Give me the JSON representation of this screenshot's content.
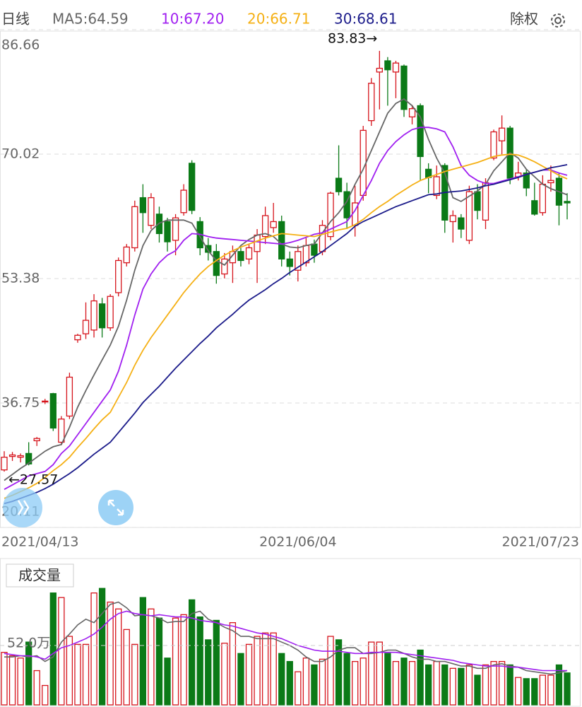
{
  "chart_data": [
    {
      "type": "candlestick",
      "period": "日线",
      "adjust": "除权",
      "categories": [
        "2021/04/13",
        null,
        null,
        null,
        null,
        null,
        null,
        null,
        null,
        null,
        null,
        null,
        null,
        null,
        null,
        null,
        null,
        null,
        null,
        null,
        null,
        null,
        null,
        null,
        null,
        null,
        null,
        null,
        null,
        null,
        null,
        null,
        null,
        null,
        null,
        null,
        "2021/06/04",
        null,
        null,
        null,
        null,
        null,
        null,
        null,
        null,
        null,
        null,
        null,
        null,
        null,
        null,
        null,
        null,
        null,
        null,
        null,
        null,
        null,
        null,
        null,
        null,
        null,
        null,
        null,
        null,
        null,
        null,
        null,
        null,
        "2021/07/23"
      ],
      "open": [
        27.8,
        29.6,
        29.5,
        30.0,
        31.7,
        36.9,
        38.0,
        31.5,
        35.0,
        45.2,
        46.0,
        46.5,
        50.0,
        46.8,
        51.5,
        55.5,
        57.5,
        64.2,
        60.5,
        62.0,
        61.0,
        58.5,
        62.2,
        68.8,
        61.0,
        57.8,
        57.0,
        54.0,
        55.5,
        57.0,
        56.0,
        57.0,
        59.0,
        60.2,
        61.0,
        56.0,
        54.5,
        55.5,
        58.0,
        57.0,
        59.0,
        66.8,
        65.0,
        60.5,
        64.5,
        74.5,
        81.0,
        82.5,
        81.0,
        81.8,
        75.0,
        76.5,
        68.0,
        64.5,
        68.5,
        61.0,
        61.5,
        58.5,
        65.0,
        61.2,
        69.5,
        71.8,
        73.5,
        67.0,
        67.5,
        63.8,
        62.2,
        66.2,
        66.8,
        63.7
      ],
      "high": [
        30.3,
        30.2,
        30.0,
        31.5,
        32.2,
        37.3,
        38.1,
        35.0,
        40.8,
        46.0,
        50.2,
        51.3,
        50.8,
        51.3,
        56.2,
        58.0,
        63.8,
        66.0,
        64.8,
        63.0,
        61.5,
        62.0,
        66.0,
        69.2,
        61.6,
        58.8,
        58.0,
        56.8,
        57.8,
        57.5,
        58.0,
        60.0,
        63.0,
        63.5,
        61.8,
        57.0,
        57.8,
        58.8,
        58.6,
        61.2,
        65.0,
        71.2,
        66.2,
        65.8,
        73.8,
        80.2,
        83.83,
        83.0,
        82.5,
        82.0,
        76.6,
        76.8,
        68.8,
        68.5,
        68.8,
        62.5,
        62.0,
        65.8,
        66.0,
        66.8,
        73.3,
        75.2,
        73.8,
        69.0,
        68.0,
        66.2,
        67.2,
        68.5,
        67.5,
        64.8
      ],
      "low": [
        27.57,
        29.0,
        28.8,
        28.4,
        31.0,
        36.6,
        33.0,
        31.1,
        34.6,
        44.8,
        45.3,
        45.5,
        45.5,
        46.4,
        51.0,
        55.0,
        57.0,
        59.5,
        60.0,
        58.2,
        57.0,
        56.5,
        61.8,
        62.0,
        56.5,
        55.8,
        52.7,
        53.4,
        52.8,
        55.0,
        55.3,
        52.8,
        58.0,
        59.5,
        55.0,
        53.8,
        53.0,
        55.0,
        55.5,
        56.5,
        58.5,
        64.5,
        60.0,
        59.0,
        63.8,
        73.8,
        76.0,
        76.5,
        77.5,
        75.0,
        74.0,
        66.5,
        64.8,
        64.0,
        59.5,
        58.2,
        58.8,
        58.0,
        61.3,
        60.0,
        69.2,
        70.0,
        66.0,
        66.5,
        64.4,
        61.8,
        61.8,
        65.0,
        60.5,
        61.3
      ],
      "close": [
        29.5,
        29.8,
        29.7,
        28.6,
        32.0,
        37.0,
        33.4,
        34.6,
        40.2,
        45.8,
        47.8,
        50.4,
        46.8,
        51.0,
        55.8,
        57.6,
        63.0,
        62.2,
        64.2,
        59.4,
        58.3,
        61.5,
        65.2,
        62.5,
        57.5,
        56.9,
        53.8,
        56.0,
        57.0,
        55.8,
        57.5,
        59.2,
        61.8,
        61.0,
        56.0,
        55.0,
        57.0,
        57.8,
        56.5,
        60.5,
        64.8,
        65.0,
        61.5,
        63.5,
        73.2,
        79.5,
        81.5,
        81.3,
        82.2,
        76.0,
        76.1,
        69.7,
        66.9,
        67.0,
        61.2,
        61.8,
        60.0,
        65.0,
        62.5,
        66.2,
        73.0,
        73.5,
        66.8,
        67.5,
        65.5,
        62.0,
        66.0,
        66.5,
        63.2,
        63.5
      ],
      "up_color": "#d6141c",
      "down_color": "#0b7a17",
      "series": [
        {
          "name": "MA5:64.59",
          "color": "#666666",
          "values": [
            26.4,
            27.2,
            28.0,
            28.7,
            29.5,
            30.3,
            30.9,
            31.2,
            33.5,
            36.2,
            38.4,
            40.5,
            42.5,
            44.5,
            47.0,
            50.5,
            54.5,
            57.8,
            59.8,
            60.8,
            61.2,
            61.2,
            61.2,
            60.8,
            59.0,
            57.1,
            55.8,
            55.2,
            56.5,
            57.8,
            58.6,
            59.2,
            59.4,
            59.0,
            58.0,
            57.6,
            57.5,
            57.8,
            58.0,
            59.5,
            61.0,
            62.2,
            63.7,
            66.0,
            68.0,
            70.5,
            73.0,
            75.5,
            76.8,
            77.4,
            76.5,
            75.0,
            72.0,
            69.5,
            67.5,
            64.2,
            63.7,
            64.4,
            65.1,
            66.0,
            67.8,
            69.0,
            70.2,
            69.5,
            68.0,
            67.0,
            66.0,
            65.4,
            65.0,
            64.59
          ]
        },
        {
          "name": "10:67.20",
          "color": "#a01ff0",
          "values": [
            25.2,
            25.8,
            26.4,
            27.0,
            27.3,
            27.6,
            28.5,
            30.0,
            31.0,
            32.5,
            34.0,
            35.5,
            37.0,
            38.5,
            41.0,
            44.5,
            48.5,
            52.0,
            54.0,
            55.5,
            56.5,
            57.1,
            58.5,
            59.4,
            59.3,
            59.0,
            58.8,
            58.7,
            58.6,
            58.5,
            58.4,
            58.3,
            58.2,
            58.1,
            58.0,
            58.2,
            58.5,
            58.9,
            59.3,
            59.5,
            60.0,
            60.5,
            61.0,
            62.5,
            64.5,
            66.5,
            68.8,
            70.5,
            71.7,
            72.6,
            73.3,
            73.6,
            73.6,
            73.4,
            73.0,
            71.0,
            68.5,
            67.2,
            66.5,
            66.1,
            66.1,
            66.4,
            66.7,
            67.0,
            67.3,
            67.6,
            67.9,
            67.9,
            67.5,
            67.2
          ]
        },
        {
          "name": "20:66.71",
          "color": "#f5b014",
          "values": [
            24.0,
            24.4,
            24.9,
            25.4,
            26.0,
            26.8,
            27.7,
            28.5,
            29.5,
            30.8,
            32.0,
            33.3,
            34.5,
            35.5,
            37.5,
            39.5,
            41.8,
            43.8,
            45.5,
            47.0,
            48.5,
            50.0,
            51.5,
            52.8,
            54.0,
            55.0,
            55.8,
            56.5,
            57.1,
            57.6,
            58.0,
            58.4,
            58.8,
            59.1,
            59.4,
            59.3,
            59.2,
            59.1,
            59.0,
            59.3,
            59.6,
            59.9,
            60.1,
            60.6,
            61.3,
            62.2,
            63.0,
            63.7,
            64.5,
            65.2,
            65.9,
            66.5,
            66.9,
            67.3,
            67.7,
            68.0,
            68.3,
            68.6,
            68.9,
            69.3,
            69.7,
            69.9,
            70.0,
            69.9,
            69.5,
            69.0,
            68.4,
            67.8,
            67.2,
            66.71
          ]
        },
        {
          "name": "30:68.61",
          "color": "#1b1b8a",
          "values": [
            23.3,
            23.6,
            24.0,
            24.4,
            24.8,
            25.3,
            25.9,
            26.6,
            27.3,
            28.1,
            29.0,
            29.9,
            30.7,
            31.5,
            32.8,
            34.1,
            35.4,
            36.8,
            37.9,
            39.0,
            40.2,
            41.4,
            42.5,
            43.6,
            44.7,
            45.7,
            46.8,
            47.7,
            48.6,
            49.6,
            50.5,
            51.2,
            51.9,
            52.7,
            53.4,
            54.2,
            54.9,
            55.6,
            56.3,
            57.0,
            57.8,
            58.6,
            59.4,
            60.4,
            61.0,
            61.5,
            62.0,
            62.5,
            63.0,
            63.4,
            63.8,
            64.2,
            64.6,
            64.7,
            64.9,
            65.0,
            65.1,
            65.3,
            65.5,
            65.8,
            66.0,
            66.3,
            66.6,
            66.9,
            67.3,
            67.6,
            67.9,
            68.2,
            68.4,
            68.61
          ]
        }
      ],
      "ylim": [
        20.11,
        86.66
      ],
      "yticks": [
        86.66,
        70.02,
        53.38,
        36.75,
        20.11
      ],
      "grid": true,
      "high_label": "83.83→",
      "low_label": "←27.57"
    },
    {
      "type": "volume",
      "title": "成交量",
      "values": [
        46,
        43,
        41,
        55,
        30,
        17,
        98,
        94,
        60,
        53,
        53,
        98,
        102,
        90,
        84,
        66,
        53,
        94,
        84,
        76,
        41,
        76,
        79,
        92,
        77,
        57,
        74,
        54,
        72,
        45,
        53,
        60,
        63,
        63,
        45,
        38,
        29,
        41,
        35,
        40,
        60,
        57,
        45,
        38,
        41,
        55,
        55,
        45,
        38,
        41,
        38,
        48,
        35,
        38,
        35,
        32,
        32,
        35,
        26,
        35,
        38,
        38,
        35,
        24,
        23,
        23,
        26,
        26,
        35,
        28
      ],
      "lines": [
        {
          "color": "#666666",
          "values": [
            42,
            42,
            43,
            42,
            43,
            38,
            42,
            55,
            62,
            70,
            75,
            72,
            80,
            88,
            90,
            85,
            78,
            79,
            78,
            76,
            72,
            73,
            73,
            80,
            82,
            75,
            72,
            68,
            65,
            60,
            60,
            58,
            58,
            58,
            55,
            52,
            48,
            42,
            38,
            38,
            42,
            48,
            50,
            50,
            45,
            45,
            46,
            48,
            48,
            45,
            42,
            40,
            40,
            38,
            38,
            36,
            34,
            34,
            32,
            32,
            35,
            36,
            34,
            33,
            30,
            29,
            28,
            27,
            28,
            30
          ]
        },
        {
          "color": "#a01ff0",
          "values": [
            45,
            44,
            43,
            43,
            42,
            40,
            45,
            50,
            52,
            55,
            58,
            62,
            68,
            75,
            80,
            82,
            80,
            79,
            78,
            79,
            78,
            77,
            77,
            76,
            74,
            73,
            72,
            70,
            69,
            67,
            65,
            63,
            62,
            60,
            58,
            55,
            52,
            50,
            48,
            47,
            47,
            47,
            46,
            45,
            45,
            46,
            46,
            46,
            46,
            45,
            44,
            43,
            42,
            41,
            40,
            39,
            37,
            36,
            35,
            34,
            34,
            34,
            33,
            33,
            32,
            31,
            30,
            30,
            30,
            30
          ]
        }
      ],
      "ylim": [
        0,
        104
      ],
      "yticks": [
        {
          "value": 52,
          "label": "52.0万"
        }
      ],
      "grid": true
    }
  ]
}
